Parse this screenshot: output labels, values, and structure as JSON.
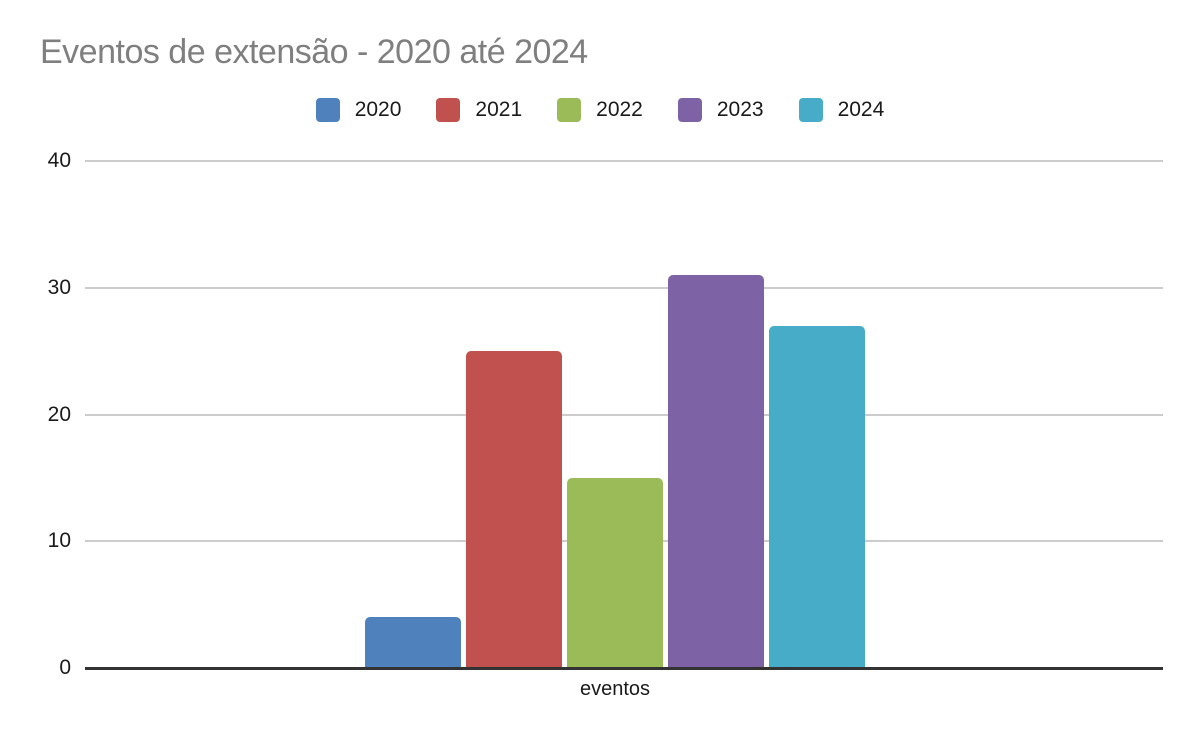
{
  "title": "Eventos de extensão - 2020 até 2024",
  "chart_data": {
    "type": "bar",
    "title": "Eventos de extensão - 2020 até 2024",
    "categories": [
      "eventos"
    ],
    "series": [
      {
        "name": "2020",
        "values": [
          4
        ],
        "color": "#4F81BD"
      },
      {
        "name": "2021",
        "values": [
          25
        ],
        "color": "#C1514F"
      },
      {
        "name": "2022",
        "values": [
          15
        ],
        "color": "#9BBB59"
      },
      {
        "name": "2023",
        "values": [
          31
        ],
        "color": "#7D63A5"
      },
      {
        "name": "2024",
        "values": [
          27
        ],
        "color": "#47ACC7"
      }
    ],
    "xlabel": "eventos",
    "ylabel": "",
    "ylim": [
      0,
      40
    ],
    "yticks": [
      0,
      10,
      20,
      30,
      40
    ],
    "grid": true,
    "legend_position": "top-center"
  },
  "colors": {
    "title_text": "#7f7f7f",
    "axis_text": "#1a1a1a",
    "gridline": "#cccccc",
    "baseline": "#333333",
    "background": "#ffffff"
  }
}
